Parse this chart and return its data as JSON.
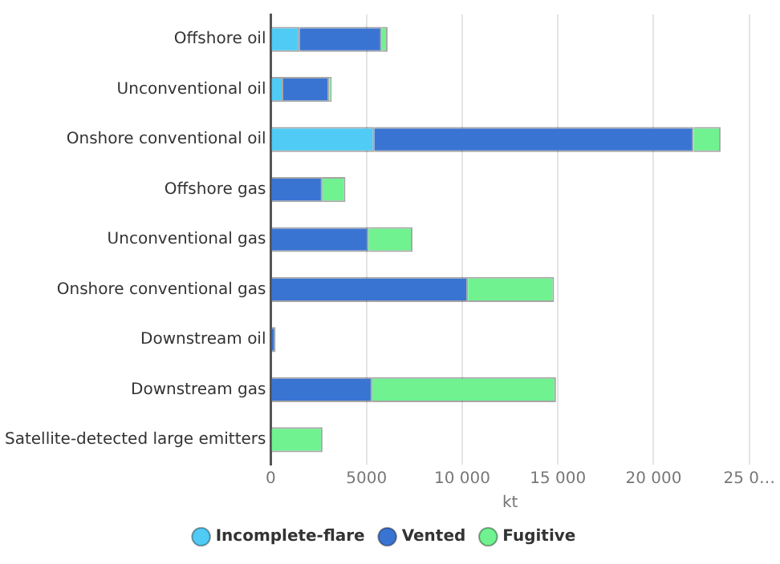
{
  "chart_data": {
    "type": "bar",
    "orientation": "horizontal",
    "stacked": true,
    "xlabel": "kt",
    "categories": [
      "Offshore oil",
      "Unconventional oil",
      "Onshore conventional oil",
      "Offshore gas",
      "Unconventional gas",
      "Onshore conventional gas",
      "Downstream oil",
      "Downstream gas",
      "Satellite-detected large emitters"
    ],
    "series": [
      {
        "name": "Incomplete-flare",
        "color": "#4fcbf5",
        "values": [
          1500,
          650,
          5400,
          null,
          null,
          null,
          null,
          null,
          null
        ]
      },
      {
        "name": "Vented",
        "color": "#3a74d3",
        "values": [
          4300,
          2400,
          16700,
          2700,
          5100,
          10300,
          250,
          5300,
          null
        ]
      },
      {
        "name": "Fugitive",
        "color": "#6ff28f",
        "values": [
          300,
          130,
          1400,
          1200,
          2300,
          4500,
          null,
          9600,
          2700
        ]
      }
    ],
    "xlim": [
      0,
      25000
    ],
    "xticks": [
      0,
      {
        "value": 5000,
        "label": "5000"
      },
      {
        "value": 10000,
        "label": "10 000"
      },
      {
        "value": 15000,
        "label": "15 000"
      },
      {
        "value": 20000,
        "label": "20 000"
      },
      {
        "value": 25000,
        "label": "25 0…"
      }
    ],
    "grid": "x",
    "legend": "bottom"
  }
}
